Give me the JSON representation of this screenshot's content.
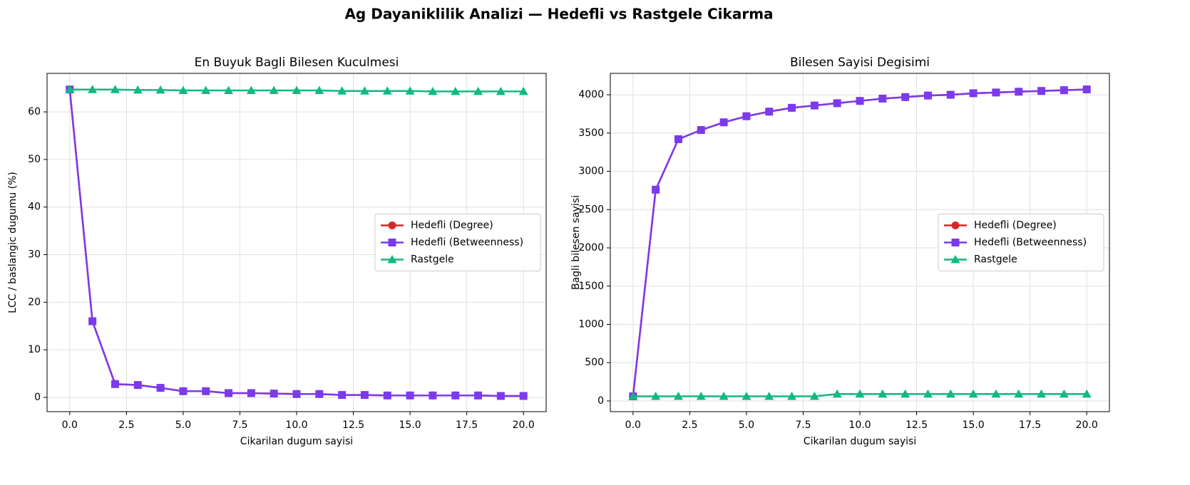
{
  "title": "Ag Dayaniklilik Analizi — Hedefli vs Rastgele Cikarma",
  "chart_data": [
    {
      "type": "line",
      "title": "En Buyuk Bagli Bilesen Kuculmesi",
      "x_label": "Cikarilan dugum sayisi",
      "y_label": "LCC / baslangic dugumu (%)",
      "x": [
        0,
        1,
        2,
        3,
        4,
        5,
        6,
        7,
        8,
        9,
        10,
        11,
        12,
        13,
        14,
        15,
        16,
        17,
        18,
        19,
        20
      ],
      "series": [
        {
          "name": "Hedefli (Degree)",
          "color": "#d62728",
          "marker": "circle",
          "values": [
            64.7,
            16.0,
            2.8,
            2.6,
            2.0,
            1.3,
            1.3,
            0.9,
            0.9,
            0.8,
            0.7,
            0.7,
            0.5,
            0.5,
            0.4,
            0.4,
            0.4,
            0.4,
            0.4,
            0.3,
            0.3
          ]
        },
        {
          "name": "Hedefli (Betweenness)",
          "color": "#7c3aed",
          "marker": "square",
          "values": [
            64.7,
            16.0,
            2.8,
            2.6,
            2.0,
            1.3,
            1.3,
            0.9,
            0.9,
            0.8,
            0.7,
            0.7,
            0.5,
            0.5,
            0.4,
            0.4,
            0.4,
            0.4,
            0.4,
            0.3,
            0.3
          ]
        },
        {
          "name": "Rastgele",
          "color": "#10b981",
          "marker": "triangle",
          "values": [
            64.7,
            64.7,
            64.7,
            64.6,
            64.6,
            64.5,
            64.5,
            64.5,
            64.5,
            64.5,
            64.5,
            64.5,
            64.4,
            64.4,
            64.4,
            64.4,
            64.3,
            64.3,
            64.3,
            64.3,
            64.3
          ]
        }
      ],
      "xlim": [
        -1,
        21
      ],
      "ylim": [
        -3,
        68.1
      ],
      "xticks": [
        {
          "value": 0,
          "label": "0.0"
        },
        2.5,
        {
          "value": 5,
          "label": "5.0"
        },
        7.5,
        {
          "value": 10,
          "label": "10.0"
        },
        12.5,
        {
          "value": 15,
          "label": "15.0"
        },
        17.5,
        {
          "value": 20,
          "label": "20.0"
        }
      ],
      "yticks": [
        0,
        10,
        20,
        30,
        40,
        50,
        60
      ],
      "grid": true,
      "legend": "center right"
    },
    {
      "type": "line",
      "title": "Bilesen Sayisi Degisimi",
      "x_label": "Cikarilan dugum sayisi",
      "y_label": "Bagli bilesen sayisi",
      "x": [
        0,
        1,
        2,
        3,
        4,
        5,
        6,
        7,
        8,
        9,
        10,
        11,
        12,
        13,
        14,
        15,
        16,
        17,
        18,
        19,
        20
      ],
      "series": [
        {
          "name": "Hedefli (Degree)",
          "color": "#d62728",
          "marker": "circle",
          "values": [
            60,
            2760,
            3420,
            3540,
            3640,
            3720,
            3780,
            3830,
            3860,
            3890,
            3920,
            3950,
            3970,
            3990,
            4000,
            4020,
            4030,
            4040,
            4050,
            4060,
            4070
          ]
        },
        {
          "name": "Hedefli (Betweenness)",
          "color": "#7c3aed",
          "marker": "square",
          "values": [
            60,
            2760,
            3420,
            3540,
            3640,
            3720,
            3780,
            3830,
            3860,
            3890,
            3920,
            3950,
            3970,
            3990,
            4000,
            4020,
            4030,
            4040,
            4050,
            4060,
            4070
          ]
        },
        {
          "name": "Rastgele",
          "color": "#10b981",
          "marker": "triangle",
          "values": [
            60,
            60,
            60,
            60,
            60,
            60,
            60,
            60,
            60,
            90,
            90,
            90,
            90,
            90,
            90,
            90,
            90,
            90,
            90,
            90,
            90
          ]
        }
      ],
      "xlim": [
        -1,
        21
      ],
      "ylim": [
        -140,
        4280
      ],
      "xticks": [
        {
          "value": 0,
          "label": "0.0"
        },
        2.5,
        {
          "value": 5,
          "label": "5.0"
        },
        7.5,
        {
          "value": 10,
          "label": "10.0"
        },
        12.5,
        {
          "value": 15,
          "label": "15.0"
        },
        17.5,
        {
          "value": 20,
          "label": "20.0"
        }
      ],
      "yticks": [
        0,
        500,
        1000,
        1500,
        2000,
        2500,
        3000,
        3500,
        4000
      ],
      "grid": true,
      "legend": "center right"
    }
  ]
}
